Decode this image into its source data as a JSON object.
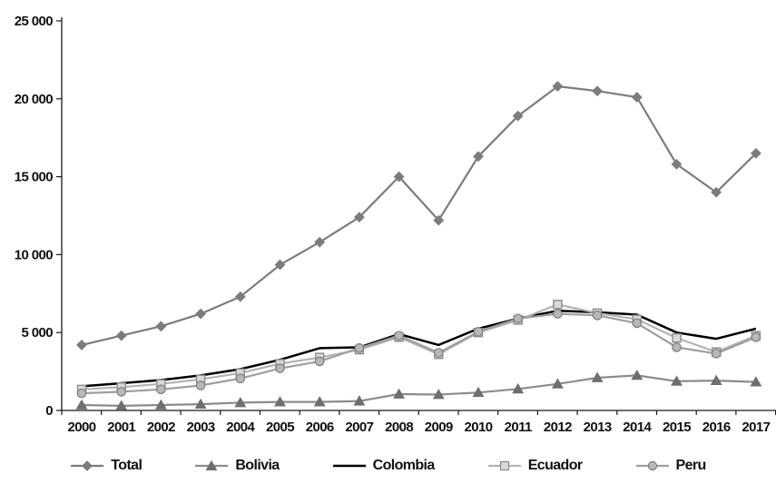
{
  "chart_data": {
    "type": "line",
    "title": "",
    "xlabel": "",
    "ylabel": "",
    "x_labels": [
      "2000",
      "2001",
      "2002",
      "2003",
      "2004",
      "2005",
      "2006",
      "2007",
      "2008",
      "2009",
      "2010",
      "2011",
      "2012",
      "2013",
      "2014",
      "2015",
      "2016",
      "2017"
    ],
    "ylim": [
      0,
      25000
    ],
    "ytick_step": 5000,
    "ytick_labels": [
      "0",
      "5 000",
      "10 000",
      "15 000",
      "20 000",
      "25 000"
    ],
    "grid": false,
    "legend_position": "bottom",
    "axis_color": "#1a1a1a",
    "background_color": "#ffffff",
    "series": [
      {
        "name": "Total",
        "marker": "diamond",
        "line_color": "#7c7c7c",
        "marker_fill": "#7c7c7c",
        "marker_stroke": "#7c7c7c",
        "values": [
          4200,
          4800,
          5400,
          6200,
          7300,
          9350,
          10800,
          12400,
          15000,
          12200,
          16300,
          18900,
          20800,
          20500,
          20100,
          15800,
          14000,
          16500
        ]
      },
      {
        "name": "Bolivia",
        "marker": "triangle",
        "line_color": "#8c8c8c",
        "marker_fill": "#6f6f6f",
        "marker_stroke": "#6f6f6f",
        "values": [
          350,
          300,
          350,
          400,
          500,
          550,
          550,
          600,
          1050,
          1020,
          1150,
          1380,
          1700,
          2100,
          2250,
          1870,
          1920,
          1830
        ]
      },
      {
        "name": "Colombia",
        "marker": "none",
        "line_color": "#000000",
        "marker_fill": "#000000",
        "marker_stroke": "#000000",
        "values": [
          1550,
          1750,
          1950,
          2250,
          2650,
          3250,
          4000,
          4050,
          4900,
          4200,
          5250,
          5900,
          6400,
          6300,
          6150,
          5000,
          4600,
          5250
        ]
      },
      {
        "name": "Ecuador",
        "marker": "square",
        "line_color": "#b3b3b3",
        "marker_fill": "#d9d9d9",
        "marker_stroke": "#8c8c8c",
        "values": [
          1350,
          1500,
          1700,
          2000,
          2400,
          3000,
          3400,
          3900,
          4700,
          3600,
          5000,
          5800,
          6800,
          6250,
          5850,
          4650,
          3750,
          4800
        ]
      },
      {
        "name": "Peru",
        "marker": "circle",
        "line_color": "#9e9e9e",
        "marker_fill": "#b8b8b8",
        "marker_stroke": "#7f7f7f",
        "values": [
          1100,
          1200,
          1350,
          1600,
          2050,
          2700,
          3150,
          4000,
          4800,
          3700,
          5050,
          5900,
          6200,
          6100,
          5600,
          4050,
          3650,
          4700
        ]
      }
    ]
  }
}
